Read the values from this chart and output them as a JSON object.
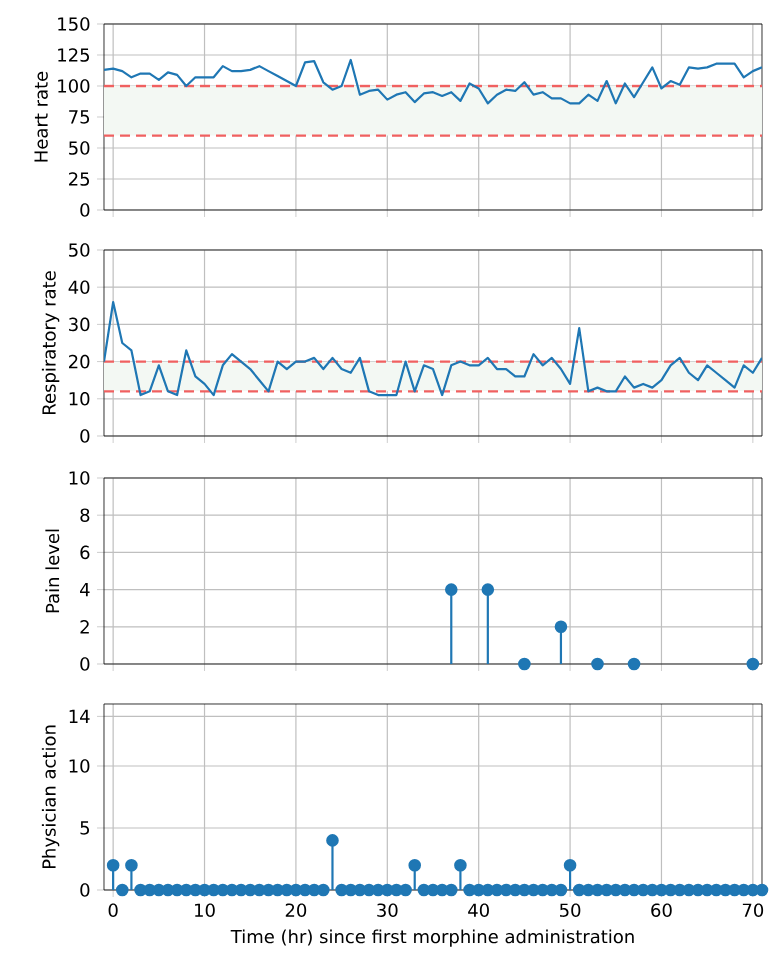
{
  "chart_data": [
    {
      "type": "line",
      "ylabel": "Heart rate",
      "color": "#1f77b4",
      "grid": true,
      "tick_labels": "y",
      "x": [
        -1,
        0,
        1,
        2,
        3,
        4,
        5,
        6,
        7,
        8,
        9,
        10,
        11,
        12,
        13,
        14,
        15,
        16,
        17,
        18,
        19,
        20,
        21,
        22,
        23,
        24,
        25,
        26,
        27,
        28,
        29,
        30,
        31,
        32,
        33,
        34,
        35,
        36,
        37,
        38,
        39,
        40,
        41,
        42,
        43,
        44,
        45,
        46,
        47,
        48,
        49,
        50,
        51,
        52,
        53,
        54,
        55,
        56,
        57,
        58,
        59,
        60,
        61,
        62,
        63,
        64,
        65,
        66,
        67,
        68,
        69,
        70,
        71
      ],
      "values": [
        113,
        114,
        112,
        107,
        110,
        110,
        105,
        111,
        109,
        100,
        107,
        107,
        107,
        116,
        112,
        112,
        113,
        116,
        112,
        108,
        104,
        100,
        119,
        120,
        103,
        97,
        100,
        121,
        93,
        96,
        97,
        89,
        93,
        95,
        87,
        94,
        95,
        92,
        95,
        88,
        102,
        98,
        86,
        93,
        97,
        96,
        103,
        93,
        95,
        90,
        90,
        86,
        86,
        93,
        88,
        104,
        86,
        102,
        91,
        103,
        115,
        98,
        104,
        101,
        115,
        114,
        115,
        118,
        118,
        118,
        107,
        112,
        115
      ],
      "xlim": [
        -1,
        71
      ],
      "ylim": [
        0,
        150
      ],
      "xticks": [
        0,
        10,
        20,
        30,
        40,
        50,
        60,
        70
      ],
      "yticks": [
        0,
        25,
        50,
        75,
        100,
        125,
        150
      ],
      "bands": [
        {
          "axis": "y",
          "from": 60,
          "to": 100,
          "color": "#f3f8f3"
        }
      ],
      "ref_lines": [
        {
          "axis": "y",
          "value": 100,
          "color": "#f06060",
          "line_style": "dashed"
        },
        {
          "axis": "y",
          "value": 60,
          "color": "#f06060",
          "line_style": "dashed"
        }
      ]
    },
    {
      "type": "line",
      "ylabel": "Respiratory rate",
      "color": "#1f77b4",
      "grid": true,
      "tick_labels": "y",
      "x": [
        -1,
        0,
        1,
        2,
        3,
        4,
        5,
        6,
        7,
        8,
        9,
        10,
        11,
        12,
        13,
        14,
        15,
        16,
        17,
        18,
        19,
        20,
        21,
        22,
        23,
        24,
        25,
        26,
        27,
        28,
        29,
        30,
        31,
        32,
        33,
        34,
        35,
        36,
        37,
        38,
        39,
        40,
        41,
        42,
        43,
        44,
        45,
        46,
        47,
        48,
        49,
        50,
        51,
        52,
        53,
        54,
        55,
        56,
        57,
        58,
        59,
        60,
        61,
        62,
        63,
        64,
        65,
        66,
        67,
        68,
        69,
        70,
        71
      ],
      "values": [
        20,
        36,
        25,
        23,
        11,
        12,
        19,
        12,
        11,
        23,
        16,
        14,
        11,
        19,
        22,
        20,
        18,
        15,
        12,
        20,
        18,
        20,
        20,
        21,
        18,
        21,
        18,
        17,
        21,
        12,
        11,
        11,
        11,
        20,
        12,
        19,
        18,
        11,
        19,
        20,
        19,
        19,
        21,
        18,
        18,
        16,
        16,
        22,
        19,
        21,
        18,
        14,
        29,
        12,
        13,
        12,
        12,
        16,
        13,
        14,
        13,
        15,
        19,
        21,
        17,
        15,
        19,
        17,
        15,
        13,
        19,
        17,
        21
      ],
      "xlim": [
        -1,
        71
      ],
      "ylim": [
        0,
        50
      ],
      "xticks": [
        0,
        10,
        20,
        30,
        40,
        50,
        60,
        70
      ],
      "yticks": [
        0,
        10,
        20,
        30,
        40,
        50
      ],
      "bands": [
        {
          "axis": "y",
          "from": 12,
          "to": 20,
          "color": "#f3f8f3"
        }
      ],
      "ref_lines": [
        {
          "axis": "y",
          "value": 20,
          "color": "#f06060",
          "line_style": "dashed"
        },
        {
          "axis": "y",
          "value": 12,
          "color": "#f06060",
          "line_style": "dashed"
        }
      ]
    },
    {
      "type": "lollipop",
      "ylabel": "Pain level",
      "color": "#1f77b4",
      "grid": true,
      "tick_labels": "y",
      "marker": "circle",
      "x": [
        37,
        41,
        45,
        49,
        53,
        57,
        70
      ],
      "values": [
        4,
        4,
        0,
        2,
        0,
        0,
        0
      ],
      "xlim": [
        -1,
        71
      ],
      "ylim": [
        0,
        10
      ],
      "xticks": [
        0,
        10,
        20,
        30,
        40,
        50,
        60,
        70
      ],
      "yticks": [
        0,
        2,
        4,
        6,
        8,
        10
      ]
    },
    {
      "type": "lollipop",
      "ylabel": "Physician action",
      "xlabel": "Time (hr) since first morphine administration",
      "color": "#1f77b4",
      "grid": true,
      "marker": "circle",
      "x": [
        0,
        1,
        2,
        3,
        4,
        5,
        6,
        7,
        8,
        9,
        10,
        11,
        12,
        13,
        14,
        15,
        16,
        17,
        18,
        19,
        20,
        21,
        22,
        23,
        24,
        25,
        26,
        27,
        28,
        29,
        30,
        31,
        32,
        33,
        34,
        35,
        36,
        37,
        38,
        39,
        40,
        41,
        42,
        43,
        44,
        45,
        46,
        47,
        48,
        49,
        50,
        51,
        52,
        53,
        54,
        55,
        56,
        57,
        58,
        59,
        60,
        61,
        62,
        63,
        64,
        65,
        66,
        67,
        68,
        69,
        70,
        71
      ],
      "values": [
        2,
        0,
        2,
        0,
        0,
        0,
        0,
        0,
        0,
        0,
        0,
        0,
        0,
        0,
        0,
        0,
        0,
        0,
        0,
        0,
        0,
        0,
        0,
        0,
        4,
        0,
        0,
        0,
        0,
        0,
        0,
        0,
        0,
        2,
        0,
        0,
        0,
        0,
        2,
        0,
        0,
        0,
        0,
        0,
        0,
        0,
        0,
        0,
        0,
        0,
        2,
        0,
        0,
        0,
        0,
        0,
        0,
        0,
        0,
        0,
        0,
        0,
        0,
        0,
        0,
        0,
        0,
        0,
        0,
        0,
        0,
        0
      ],
      "xlim": [
        -1,
        71
      ],
      "ylim": [
        0,
        15
      ],
      "xticks": [
        0,
        10,
        20,
        30,
        40,
        50,
        60,
        70
      ],
      "yticks": [
        0,
        5,
        10,
        14
      ]
    }
  ]
}
